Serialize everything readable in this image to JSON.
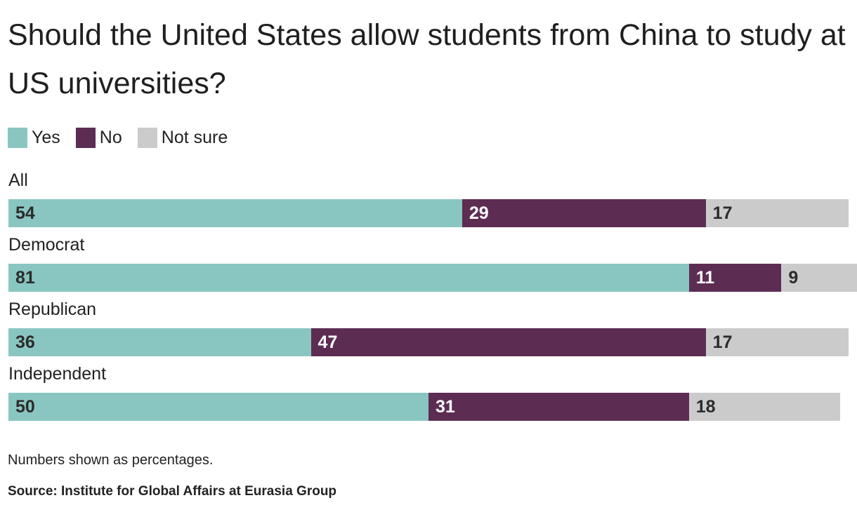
{
  "chart_data": {
    "type": "bar",
    "orientation": "horizontal",
    "stacked": true,
    "title": "Should the United States allow students from China to study at US universities?",
    "categories": [
      "All",
      "Democrat",
      "Republican",
      "Independent"
    ],
    "series": [
      {
        "name": "Yes",
        "color": "#8ac6c1",
        "values": [
          54,
          81,
          36,
          50
        ]
      },
      {
        "name": "No",
        "color": "#5c2c53",
        "values": [
          29,
          11,
          47,
          31
        ]
      },
      {
        "name": "Not sure",
        "color": "#cbcbcb",
        "values": [
          17,
          9,
          17,
          18
        ]
      }
    ],
    "xlim": [
      0,
      100
    ],
    "grid": false,
    "legend": "top-left",
    "label_colors": {
      "Yes": "#2b2b2b",
      "No": "#ffffff",
      "Not sure": "#2b2b2b"
    }
  },
  "footer": {
    "note": "Numbers shown as percentages.",
    "source": "Source: Institute for Global Affairs at Eurasia Group"
  }
}
